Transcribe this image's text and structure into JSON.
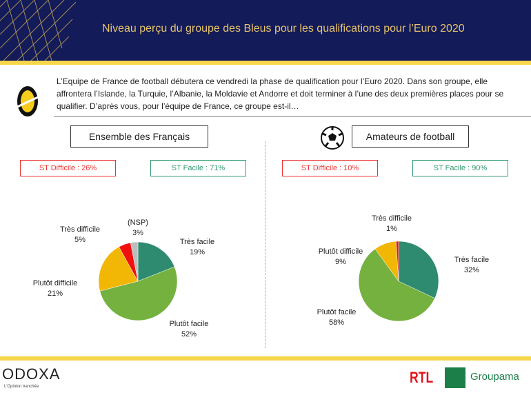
{
  "header": {
    "title": "Niveau perçu du groupe des Bleus pour les qualifications pour l’Euro 2020"
  },
  "intro": "L’Equipe de France de football débutera ce vendredi la phase de qualification pour l’Euro 2020. Dans son groupe, elle affrontera l’Islande, la Turquie, l’Albanie, la Moldavie et Andorre et doit terminer à l’une des deux premières places pour se qualifier. D’après vous, pour l’équipe de France, ce groupe est-il…",
  "colors": {
    "tres_facile": "#2e8b6f",
    "plutot_facile": "#74b13f",
    "plutot_difficile": "#f2b705",
    "tres_difficile": "#f01010",
    "nsp": "#bdbdbd"
  },
  "chart_data": [
    {
      "type": "pie",
      "title": "Ensemble des Français",
      "st_difficile": "ST Difficile : 26%",
      "st_facile": "ST Facile : 71%",
      "slices": [
        {
          "label": "Très facile",
          "value": 19,
          "text": "19%"
        },
        {
          "label": "Plutôt facile",
          "value": 52,
          "text": "52%"
        },
        {
          "label": "Plutôt difficile",
          "value": 21,
          "text": "21%"
        },
        {
          "label": "Très difficile",
          "value": 5,
          "text": "5%"
        },
        {
          "label": "(NSP)",
          "value": 3,
          "text": "3%"
        }
      ]
    },
    {
      "type": "pie",
      "title": "Amateurs de football",
      "st_difficile": "ST Difficile : 10%",
      "st_facile": "ST Facile : 90%",
      "slices": [
        {
          "label": "Très facile",
          "value": 32,
          "text": "32%"
        },
        {
          "label": "Plutôt facile",
          "value": 58,
          "text": "58%"
        },
        {
          "label": "Plutôt difficile",
          "value": 9,
          "text": "9%"
        },
        {
          "label": "Très difficile",
          "value": 1,
          "text": "1%"
        }
      ]
    }
  ],
  "footer": {
    "logo": "ODOXA",
    "tagline": "L'Opinion tranchée",
    "rtl": "RTL",
    "groupama": "Groupama"
  }
}
